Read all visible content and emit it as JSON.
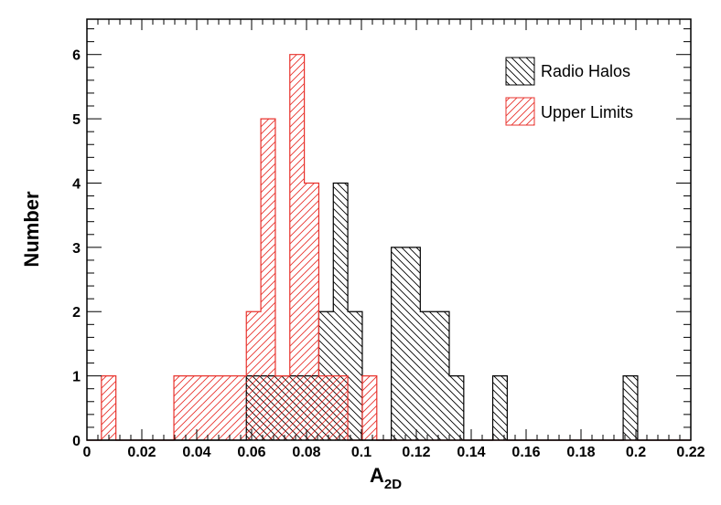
{
  "chart_data": {
    "type": "bar",
    "xlabel": "A",
    "xlabel_subscript": "2D",
    "ylabel": "Number",
    "xlim": [
      0,
      0.22
    ],
    "ylim": [
      0,
      6.55
    ],
    "x_ticks": [
      0,
      0.02,
      0.04,
      0.06,
      0.08,
      0.1,
      0.12,
      0.14,
      0.16,
      0.18,
      0.2,
      0.22
    ],
    "x_tick_labels": [
      "0",
      "0.02",
      "0.04",
      "0.06",
      "0.08",
      "0.1",
      "0.12",
      "0.14",
      "0.16",
      "0.18",
      "0.2",
      "0.22"
    ],
    "y_ticks": [
      0,
      1,
      2,
      3,
      4,
      5,
      6
    ],
    "y_tick_labels": [
      "0",
      "1",
      "2",
      "3",
      "4",
      "5",
      "6"
    ],
    "grid": false,
    "legend_position": "top-right",
    "bin_edges": [
      0,
      0.00528,
      0.01056,
      0.01584,
      0.02112,
      0.0264,
      0.03168,
      0.03696,
      0.04224,
      0.04752,
      0.0528,
      0.05808,
      0.06336,
      0.06864,
      0.07392,
      0.0792,
      0.08448,
      0.08976,
      0.09504,
      0.10032,
      0.1056,
      0.11088,
      0.11616,
      0.12144,
      0.12672,
      0.132,
      0.13728,
      0.14256,
      0.14784,
      0.15312,
      0.1584,
      0.16368,
      0.16896,
      0.17424,
      0.17952,
      0.1848,
      0.19008,
      0.19536,
      0.20064,
      0.20592,
      0.2112,
      0.21648,
      0.22
    ],
    "series": [
      {
        "name": "Radio Halos",
        "color": "#000000",
        "hatch": "backslash",
        "counts": [
          0,
          0,
          0,
          0,
          0,
          0,
          0,
          0,
          0,
          0,
          0,
          1,
          1,
          1,
          1,
          1,
          2,
          4,
          2,
          0,
          0,
          3,
          3,
          2,
          2,
          1,
          0,
          0,
          1,
          0,
          0,
          0,
          0,
          0,
          0,
          0,
          0,
          1,
          0,
          0,
          0,
          0
        ]
      },
      {
        "name": "Upper Limits",
        "color": "#e8332d",
        "hatch": "slash",
        "counts": [
          0,
          1,
          0,
          0,
          0,
          0,
          1,
          1,
          1,
          1,
          1,
          2,
          5,
          1,
          6,
          4,
          1,
          1,
          0,
          1,
          0,
          0,
          0,
          0,
          0,
          0,
          0,
          0,
          0,
          0,
          0,
          0,
          0,
          0,
          0,
          0,
          0,
          0,
          0,
          0,
          0,
          0
        ]
      }
    ]
  }
}
